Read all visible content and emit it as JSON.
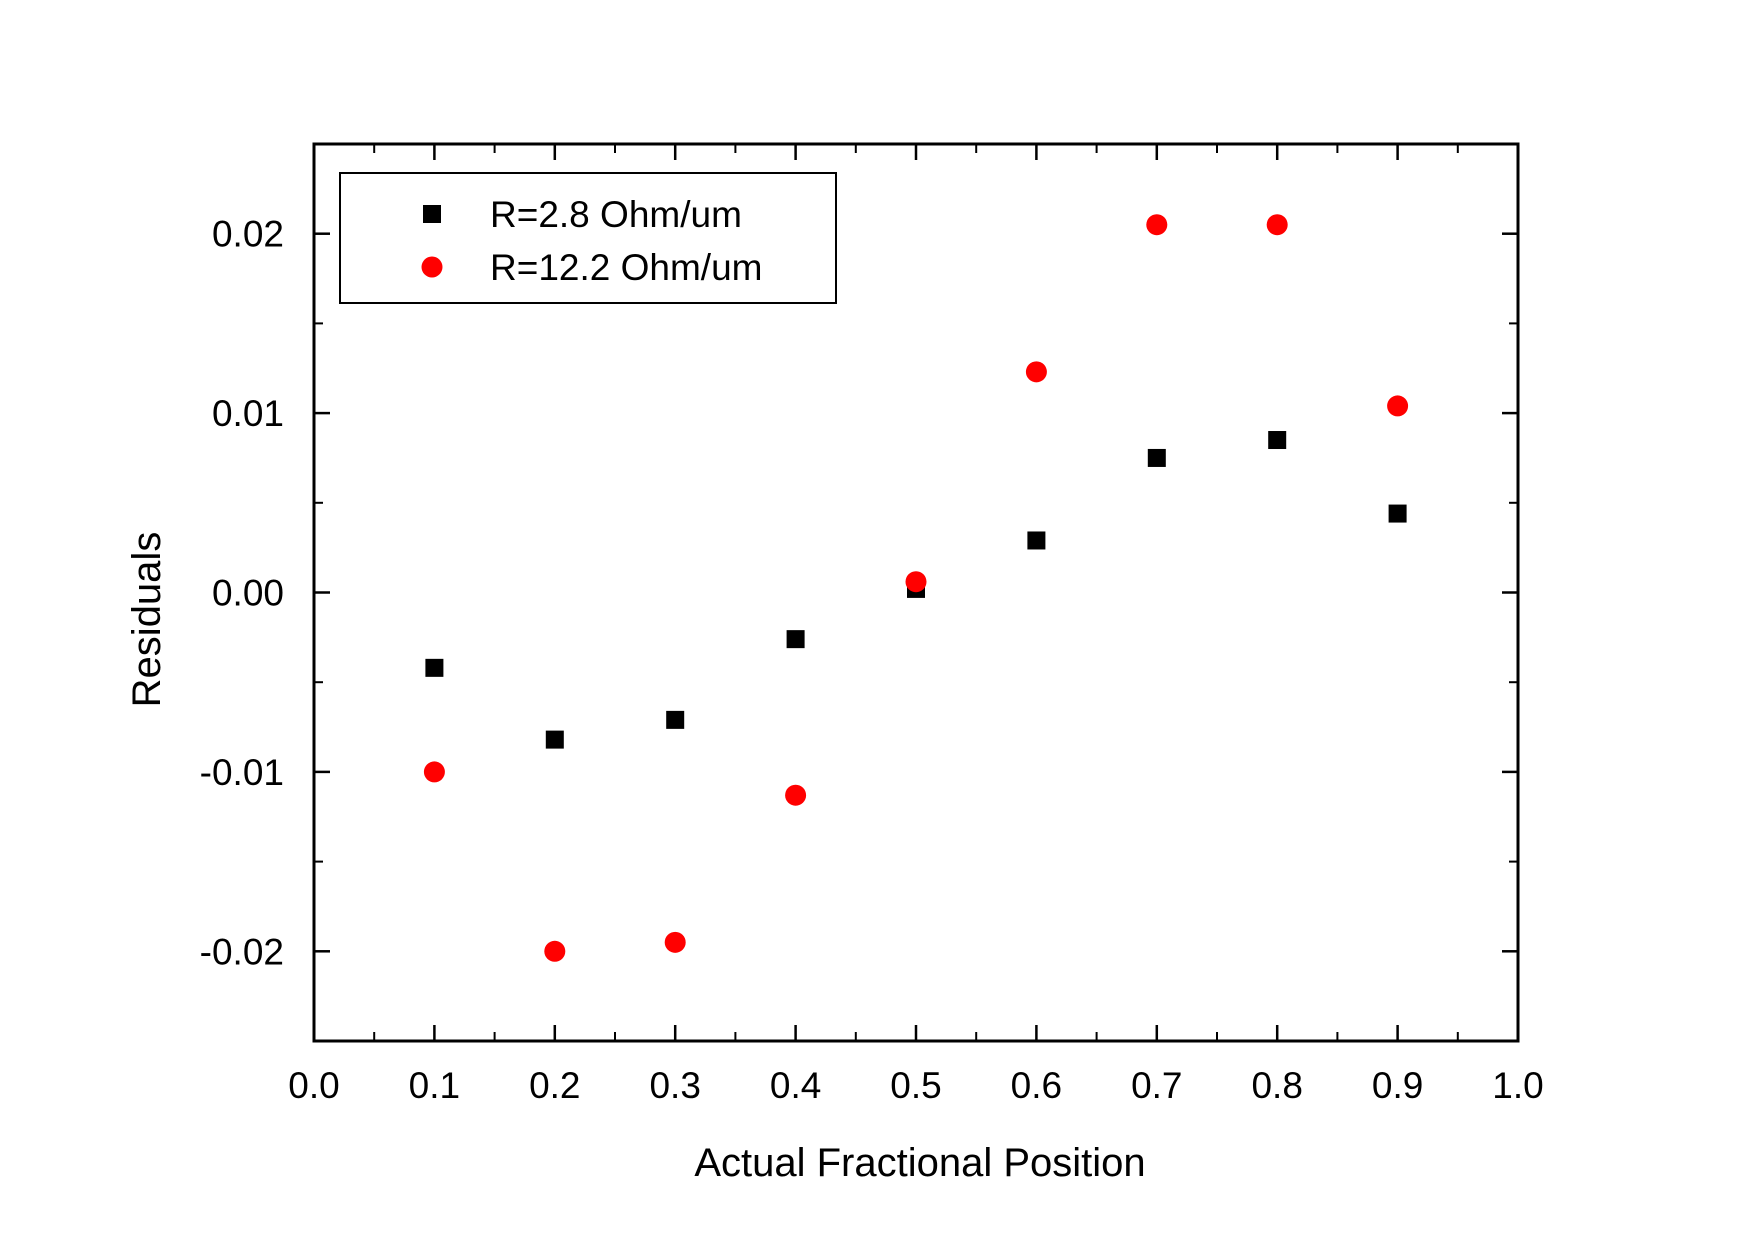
{
  "chart_data": {
    "type": "scatter",
    "title": "",
    "xlabel": "Actual Fractional Position",
    "ylabel": "Residuals",
    "xlim": [
      0.0,
      1.0
    ],
    "ylim": [
      -0.025,
      0.025
    ],
    "xticks": [
      0.0,
      0.1,
      0.2,
      0.3,
      0.4,
      0.5,
      0.6,
      0.7,
      0.8,
      0.9,
      1.0
    ],
    "xtick_labels": [
      "0.0",
      "0.1",
      "0.2",
      "0.3",
      "0.4",
      "0.5",
      "0.6",
      "0.7",
      "0.8",
      "0.9",
      "1.0"
    ],
    "yticks": [
      -0.02,
      -0.01,
      0.0,
      0.01,
      0.02
    ],
    "ytick_labels": [
      "-0.02",
      "-0.01",
      "0.00",
      "0.01",
      "0.02"
    ],
    "grid": false,
    "legend_position": "top-left",
    "series": [
      {
        "name": "R=2.8 Ohm/um",
        "marker": "square",
        "color": "#000000",
        "x": [
          0.1,
          0.2,
          0.3,
          0.4,
          0.5,
          0.6,
          0.7,
          0.8,
          0.9
        ],
        "y": [
          -0.0042,
          -0.0082,
          -0.0071,
          -0.0026,
          0.0002,
          0.0029,
          0.0075,
          0.0085,
          0.0044
        ]
      },
      {
        "name": "R=12.2 Ohm/um",
        "marker": "circle",
        "color": "#ff0000",
        "x": [
          0.1,
          0.2,
          0.3,
          0.4,
          0.5,
          0.6,
          0.7,
          0.8,
          0.9
        ],
        "y": [
          -0.01,
          -0.02,
          -0.0195,
          -0.0113,
          0.0006,
          0.0123,
          0.0205,
          0.0205,
          0.0104
        ]
      }
    ]
  }
}
